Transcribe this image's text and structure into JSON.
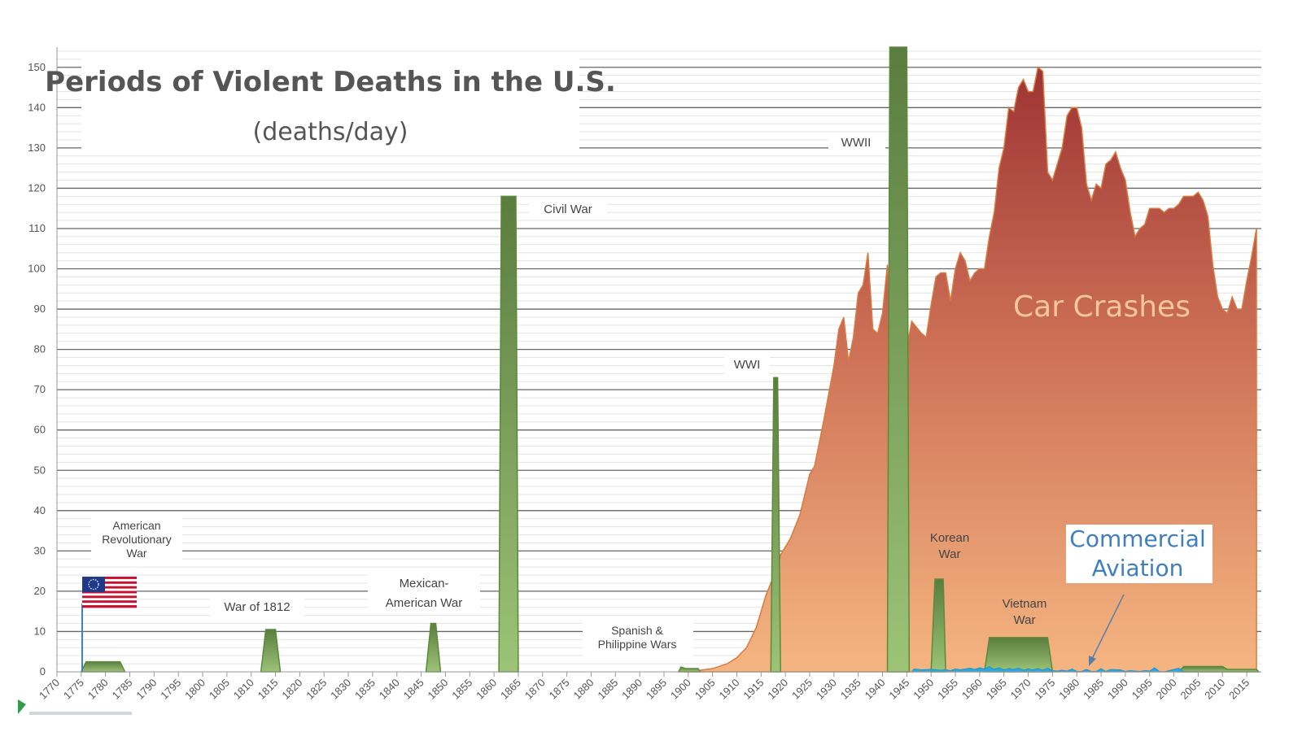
{
  "chart_data": {
    "type": "area",
    "title": "Periods of Violent Deaths in the U.S.",
    "subtitle": "(deaths/day)",
    "xlim": [
      1770,
      2018
    ],
    "ylim": [
      0,
      155
    ],
    "y_ticks": [
      0,
      10,
      20,
      30,
      40,
      50,
      60,
      70,
      80,
      90,
      100,
      110,
      120,
      130,
      140,
      150
    ],
    "x_ticks": [
      1770,
      1775,
      1780,
      1785,
      1790,
      1795,
      1800,
      1805,
      1810,
      1815,
      1820,
      1825,
      1830,
      1835,
      1840,
      1845,
      1850,
      1855,
      1860,
      1865,
      1870,
      1875,
      1880,
      1885,
      1890,
      1895,
      1900,
      1905,
      1910,
      1915,
      1920,
      1925,
      1930,
      1935,
      1940,
      1945,
      1950,
      1955,
      1960,
      1965,
      1970,
      1975,
      1980,
      1985,
      1990,
      1995,
      2000,
      2005,
      2010,
      2015
    ],
    "grid": true,
    "car_crashes": {
      "name": "Car Crashes",
      "points": [
        [
          1899,
          0
        ],
        [
          1902,
          0.3
        ],
        [
          1905,
          0.8
        ],
        [
          1908,
          2
        ],
        [
          1910,
          3.5
        ],
        [
          1912,
          6
        ],
        [
          1914,
          11
        ],
        [
          1916,
          19
        ],
        [
          1918,
          25
        ],
        [
          1919,
          29
        ],
        [
          1921,
          33
        ],
        [
          1923,
          39
        ],
        [
          1925,
          49
        ],
        [
          1926,
          51
        ],
        [
          1928,
          63
        ],
        [
          1930,
          76
        ],
        [
          1931,
          85
        ],
        [
          1932,
          88
        ],
        [
          1933,
          77
        ],
        [
          1934,
          83
        ],
        [
          1935,
          94
        ],
        [
          1936,
          96
        ],
        [
          1937,
          104
        ],
        [
          1938,
          85
        ],
        [
          1939,
          84
        ],
        [
          1940,
          89
        ],
        [
          1941,
          101
        ],
        [
          1942,
          77
        ],
        [
          1943,
          63
        ],
        [
          1944,
          66
        ],
        [
          1945,
          80
        ],
        [
          1946,
          87
        ],
        [
          1948,
          84
        ],
        [
          1949,
          83
        ],
        [
          1950,
          91
        ],
        [
          1951,
          98
        ],
        [
          1952,
          99
        ],
        [
          1953,
          99
        ],
        [
          1954,
          92
        ],
        [
          1955,
          100
        ],
        [
          1956,
          104
        ],
        [
          1957,
          102
        ],
        [
          1958,
          97
        ],
        [
          1959,
          99
        ],
        [
          1960,
          100
        ],
        [
          1961,
          100
        ],
        [
          1962,
          108
        ],
        [
          1963,
          114
        ],
        [
          1964,
          125
        ],
        [
          1965,
          130
        ],
        [
          1966,
          140
        ],
        [
          1967,
          139
        ],
        [
          1968,
          145
        ],
        [
          1969,
          147
        ],
        [
          1970,
          144
        ],
        [
          1971,
          144
        ],
        [
          1972,
          150
        ],
        [
          1973,
          149
        ],
        [
          1974,
          124
        ],
        [
          1975,
          122
        ],
        [
          1976,
          126
        ],
        [
          1977,
          130
        ],
        [
          1978,
          138
        ],
        [
          1979,
          140
        ],
        [
          1980,
          140
        ],
        [
          1981,
          135
        ],
        [
          1982,
          121
        ],
        [
          1983,
          117
        ],
        [
          1984,
          121
        ],
        [
          1985,
          120
        ],
        [
          1986,
          126
        ],
        [
          1987,
          127
        ],
        [
          1988,
          129
        ],
        [
          1989,
          125
        ],
        [
          1990,
          122
        ],
        [
          1991,
          114
        ],
        [
          1992,
          108
        ],
        [
          1993,
          110
        ],
        [
          1994,
          111
        ],
        [
          1995,
          115
        ],
        [
          1996,
          115
        ],
        [
          1997,
          115
        ],
        [
          1998,
          114
        ],
        [
          1999,
          115
        ],
        [
          2000,
          115
        ],
        [
          2001,
          116
        ],
        [
          2002,
          118
        ],
        [
          2003,
          118
        ],
        [
          2004,
          118
        ],
        [
          2005,
          119
        ],
        [
          2006,
          117
        ],
        [
          2007,
          113
        ],
        [
          2008,
          101
        ],
        [
          2009,
          93
        ],
        [
          2010,
          90
        ],
        [
          2011,
          89
        ],
        [
          2012,
          93
        ],
        [
          2013,
          90
        ],
        [
          2014,
          90
        ],
        [
          2015,
          97
        ],
        [
          2016,
          103
        ],
        [
          2017,
          110
        ]
      ]
    },
    "wars": [
      {
        "id": "revolutionary",
        "label": [
          "American",
          "Revolutionary",
          "War"
        ],
        "points": [
          [
            1775,
            0
          ],
          [
            1776,
            2.5
          ],
          [
            1783,
            2.5
          ],
          [
            1784,
            0
          ]
        ]
      },
      {
        "id": "1812",
        "label": [
          "War of 1812"
        ],
        "points": [
          [
            1812,
            0
          ],
          [
            1813,
            10.5
          ],
          [
            1815,
            10.5
          ],
          [
            1816,
            0
          ]
        ]
      },
      {
        "id": "mexican",
        "label": [
          "Mexican-",
          "American War"
        ],
        "points": [
          [
            1846,
            0
          ],
          [
            1847,
            12
          ],
          [
            1848,
            12
          ],
          [
            1849,
            0
          ]
        ]
      },
      {
        "id": "civil",
        "label": [
          "Civil War"
        ],
        "points": [
          [
            1861,
            0
          ],
          [
            1861.5,
            118
          ],
          [
            1864.5,
            118
          ],
          [
            1865,
            0
          ]
        ]
      },
      {
        "id": "spanish",
        "label": [
          "Spanish &",
          "Philippine Wars"
        ],
        "points": [
          [
            1898,
            0
          ],
          [
            1898.5,
            1.2
          ],
          [
            1899.5,
            0.8
          ],
          [
            1902,
            0.8
          ],
          [
            1902.5,
            0
          ]
        ]
      },
      {
        "id": "wwi",
        "label": [
          "WWI"
        ],
        "points": [
          [
            1917,
            0
          ],
          [
            1917.6,
            73
          ],
          [
            1918.4,
            73
          ],
          [
            1919,
            0
          ]
        ]
      },
      {
        "id": "wwii",
        "label": [
          "WWII"
        ],
        "points": [
          [
            1941,
            0
          ],
          [
            1941.5,
            155
          ],
          [
            1945,
            155
          ],
          [
            1945.5,
            0
          ]
        ]
      },
      {
        "id": "korean",
        "label": [
          "Korean",
          "War"
        ],
        "points": [
          [
            1950,
            0
          ],
          [
            1950.8,
            23
          ],
          [
            1952.5,
            23
          ],
          [
            1953,
            0
          ]
        ]
      },
      {
        "id": "vietnam",
        "label": [
          "Vietnam",
          "War"
        ],
        "points": [
          [
            1961,
            0
          ],
          [
            1962,
            8.5
          ],
          [
            1974,
            8.5
          ],
          [
            1975,
            0
          ]
        ]
      },
      {
        "id": "recent",
        "label": [],
        "points": [
          [
            2001,
            0
          ],
          [
            2002,
            1.3
          ],
          [
            2010,
            1.3
          ],
          [
            2011,
            0.6
          ],
          [
            2017,
            0.6
          ],
          [
            2017.5,
            0
          ]
        ]
      }
    ],
    "aviation": {
      "name": "Commercial Aviation",
      "points": [
        [
          1946,
          0
        ],
        [
          1946.5,
          0.7
        ],
        [
          1948,
          0.5
        ],
        [
          1950,
          0.6
        ],
        [
          1952,
          0.4
        ],
        [
          1953,
          0.5
        ],
        [
          1954,
          0.3
        ],
        [
          1955,
          0.7
        ],
        [
          1956,
          0.5
        ],
        [
          1958,
          0.9
        ],
        [
          1959,
          0.6
        ],
        [
          1960,
          1.0
        ],
        [
          1961,
          0.7
        ],
        [
          1962,
          1.3
        ],
        [
          1963,
          0.6
        ],
        [
          1964,
          1.0
        ],
        [
          1965,
          0.5
        ],
        [
          1966,
          0.8
        ],
        [
          1967,
          0.6
        ],
        [
          1968,
          0.9
        ],
        [
          1969,
          0.4
        ],
        [
          1970,
          0.7
        ],
        [
          1971,
          0.5
        ],
        [
          1972,
          0.8
        ],
        [
          1973,
          0.4
        ],
        [
          1974,
          0.9
        ],
        [
          1975,
          0.3
        ],
        [
          1976,
          0.2
        ],
        [
          1977,
          0.4
        ],
        [
          1978,
          0.2
        ],
        [
          1979,
          0.7
        ],
        [
          1980,
          0.1
        ],
        [
          1981,
          0.1
        ],
        [
          1982,
          0.6
        ],
        [
          1983,
          0.1
        ],
        [
          1984,
          0.1
        ],
        [
          1985,
          0.8
        ],
        [
          1986,
          0.1
        ],
        [
          1987,
          0.6
        ],
        [
          1988,
          0.5
        ],
        [
          1989,
          0.5
        ],
        [
          1990,
          0.1
        ],
        [
          1991,
          0.3
        ],
        [
          1992,
          0.2
        ],
        [
          1993,
          0.1
        ],
        [
          1994,
          0.3
        ],
        [
          1995,
          0.2
        ],
        [
          1996,
          1.0
        ],
        [
          1997,
          0.1
        ],
        [
          1998,
          0.0
        ],
        [
          2001,
          0.9
        ],
        [
          2002,
          0.1
        ],
        [
          2003,
          0.0
        ]
      ]
    },
    "labels": {
      "car_crashes": "Car Crashes",
      "aviation_line1": "Commercial",
      "aviation_line2": "Aviation"
    },
    "colors": {
      "car_top": "#9e3434",
      "car_mid": "#d9825e",
      "car_bottom": "#f5b581",
      "car_stroke": "#d87a40",
      "war_top": "#5a7d3f",
      "war_bottom": "#9cc376",
      "war_stroke": "#5b8a3a",
      "aviation": "#2aa8e0",
      "grid": "#666666",
      "grid_minor": "#e3e3e3",
      "car_label": "#f6c79a",
      "aviation_label": "#3f7fc1",
      "flag_red": "#c8102e",
      "flag_blue": "#1f3a8a"
    }
  }
}
